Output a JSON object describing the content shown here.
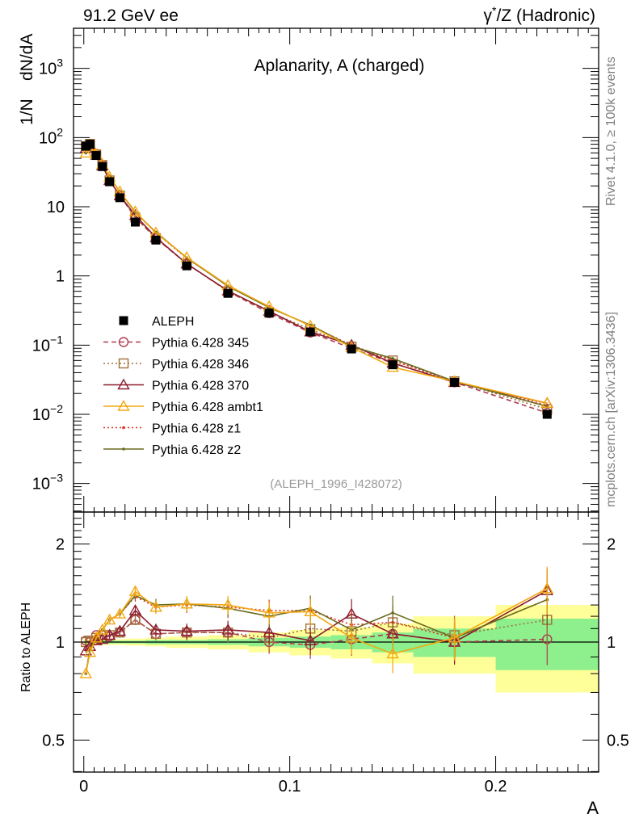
{
  "header": {
    "left": "91.2 GeV ee",
    "right_prefix": "γ",
    "right_sup": "*",
    "right_rest": "/Z (Hadronic)"
  },
  "side_labels": {
    "rivet": "Rivet 4.1.0, ≥ 100k events",
    "mcplots": "mcplots.cern.ch [arXiv:1306.3436]"
  },
  "chart_data": [
    {
      "type": "scatter",
      "title": "Aplanarity, A (charged)",
      "analysis_tag": "(ALEPH_1996_I428072)",
      "ylabel_a": "1/N",
      "ylabel_b": "dN/dA",
      "yscale": "log",
      "ylim": [
        0.0005,
        4000
      ],
      "xlim": [
        -0.005,
        0.25
      ],
      "yticks": [
        {
          "v": 0.001,
          "base": "10",
          "exp": "−3"
        },
        {
          "v": 0.01,
          "base": "10",
          "exp": "−2"
        },
        {
          "v": 0.1,
          "base": "10",
          "exp": "−1"
        },
        {
          "v": 1,
          "base": "1",
          "exp": ""
        },
        {
          "v": 10,
          "base": "10",
          "exp": ""
        },
        {
          "v": 100,
          "base": "10",
          "exp": "2"
        },
        {
          "v": 1000,
          "base": "10",
          "exp": "3"
        }
      ],
      "legend_position": "lower-left",
      "x": [
        0.001,
        0.003,
        0.006,
        0.009,
        0.0125,
        0.0175,
        0.025,
        0.035,
        0.05,
        0.07,
        0.09,
        0.11,
        0.13,
        0.15,
        0.18,
        0.225
      ],
      "series": [
        {
          "name": "ALEPH",
          "style": "data",
          "marker": "square-filled",
          "color": "#000000",
          "values": [
            75,
            80,
            55,
            38,
            23,
            13.5,
            6.0,
            3.3,
            1.4,
            0.56,
            0.29,
            0.155,
            0.088,
            0.052,
            0.029,
            0.01
          ]
        },
        {
          "name": "Pythia 6.428 345",
          "style": "dashed",
          "marker": "circle-open",
          "color": "#b03c50",
          "values": [
            76,
            80,
            58,
            40,
            24,
            14.5,
            7.0,
            3.5,
            1.5,
            0.6,
            0.29,
            0.152,
            0.09,
            0.055,
            0.029,
            0.0105
          ]
        },
        {
          "name": "Pythia 6.428 346",
          "style": "dotted",
          "marker": "square-open",
          "color": "#a2713a",
          "values": [
            75,
            81,
            57,
            40,
            24,
            14.5,
            7.0,
            3.5,
            1.5,
            0.6,
            0.3,
            0.17,
            0.095,
            0.06,
            0.03,
            0.0118
          ]
        },
        {
          "name": "Pythia 6.428 370",
          "style": "solid",
          "marker": "triangle-open",
          "color": "#8c1c2e",
          "values": [
            70,
            78,
            56,
            39,
            24,
            14.5,
            7.5,
            3.6,
            1.5,
            0.61,
            0.31,
            0.156,
            0.1,
            0.055,
            0.029,
            0.0145
          ]
        },
        {
          "name": "Pythia 6.428 ambt1",
          "style": "solid",
          "marker": "triangle-open",
          "color": "#f2a80f",
          "values": [
            60,
            75,
            57,
            41,
            27,
            16.5,
            8.5,
            4.2,
            1.85,
            0.73,
            0.36,
            0.19,
            0.093,
            0.048,
            0.03,
            0.0145
          ]
        },
        {
          "name": "Pythia 6.428 z1",
          "style": "dotted",
          "marker": "dot",
          "color": "#e0301e",
          "values": [
            60,
            76,
            58,
            41,
            27,
            16.5,
            8.3,
            4.2,
            1.8,
            0.72,
            0.36,
            0.19,
            0.1,
            0.06,
            0.03,
            0.0135
          ]
        },
        {
          "name": "Pythia 6.428 z2",
          "style": "solid",
          "marker": "dot",
          "color": "#6b6b1f",
          "values": [
            60,
            76,
            57,
            41,
            27,
            16.5,
            8.3,
            4.3,
            1.83,
            0.71,
            0.35,
            0.195,
            0.096,
            0.064,
            0.03,
            0.013
          ]
        }
      ]
    },
    {
      "type": "scatter",
      "ylabel": "Ratio to ALEPH",
      "xlabel": "A",
      "yscale": "log",
      "ylim": [
        0.4,
        2.5
      ],
      "xlim": [
        -0.005,
        0.25
      ],
      "yticks": [
        {
          "v": 0.5,
          "label": "0.5"
        },
        {
          "v": 1,
          "label": "1"
        },
        {
          "v": 2,
          "label": "2"
        }
      ],
      "xticks": [
        {
          "v": 0,
          "label": "0"
        },
        {
          "v": 0.1,
          "label": "0.1"
        },
        {
          "v": 0.2,
          "label": "0.2"
        }
      ],
      "reference": 1,
      "uncertainty_bands": {
        "edges": [
          0,
          0.002,
          0.004,
          0.008,
          0.01,
          0.015,
          0.02,
          0.03,
          0.04,
          0.06,
          0.08,
          0.1,
          0.12,
          0.14,
          0.16,
          0.2,
          0.25
        ],
        "stat": [
          0.01,
          0.01,
          0.01,
          0.01,
          0.01,
          0.01,
          0.01,
          0.015,
          0.015,
          0.02,
          0.03,
          0.04,
          0.05,
          0.07,
          0.1,
          0.18
        ],
        "total": [
          0.02,
          0.02,
          0.02,
          0.02,
          0.02,
          0.02,
          0.025,
          0.03,
          0.04,
          0.05,
          0.07,
          0.09,
          0.11,
          0.14,
          0.2,
          0.3
        ]
      },
      "series": [
        {
          "name": "Pythia 6.428 345",
          "values": [
            1.01,
            1.0,
            1.05,
            1.05,
            1.04,
            1.07,
            1.17,
            1.06,
            1.07,
            1.07,
            1.0,
            0.98,
            1.02,
            1.06,
            1.0,
            1.02
          ]
        },
        {
          "name": "Pythia 6.428 346",
          "values": [
            1.0,
            1.01,
            1.03,
            1.05,
            1.05,
            1.07,
            1.17,
            1.06,
            1.07,
            1.07,
            1.03,
            1.1,
            1.08,
            1.15,
            1.05,
            1.17
          ]
        },
        {
          "name": "Pythia 6.428 370",
          "values": [
            0.94,
            0.97,
            1.01,
            1.02,
            1.05,
            1.08,
            1.25,
            1.09,
            1.08,
            1.09,
            1.07,
            1.01,
            1.22,
            1.06,
            1.0,
            1.44
          ]
        },
        {
          "name": "Pythia 6.428 ambt1",
          "values": [
            0.8,
            0.93,
            1.03,
            1.09,
            1.17,
            1.22,
            1.43,
            1.28,
            1.31,
            1.3,
            1.23,
            1.24,
            1.03,
            0.92,
            1.03,
            1.46
          ]
        },
        {
          "name": "Pythia 6.428 z1",
          "values": [
            0.8,
            0.95,
            1.05,
            1.09,
            1.17,
            1.22,
            1.38,
            1.28,
            1.3,
            1.28,
            1.25,
            1.25,
            1.13,
            1.15,
            1.03,
            1.35
          ]
        },
        {
          "name": "Pythia 6.428 z2",
          "values": [
            0.8,
            0.95,
            1.03,
            1.09,
            1.17,
            1.22,
            1.39,
            1.3,
            1.31,
            1.27,
            1.2,
            1.27,
            1.09,
            1.23,
            1.03,
            1.35
          ]
        }
      ]
    }
  ]
}
